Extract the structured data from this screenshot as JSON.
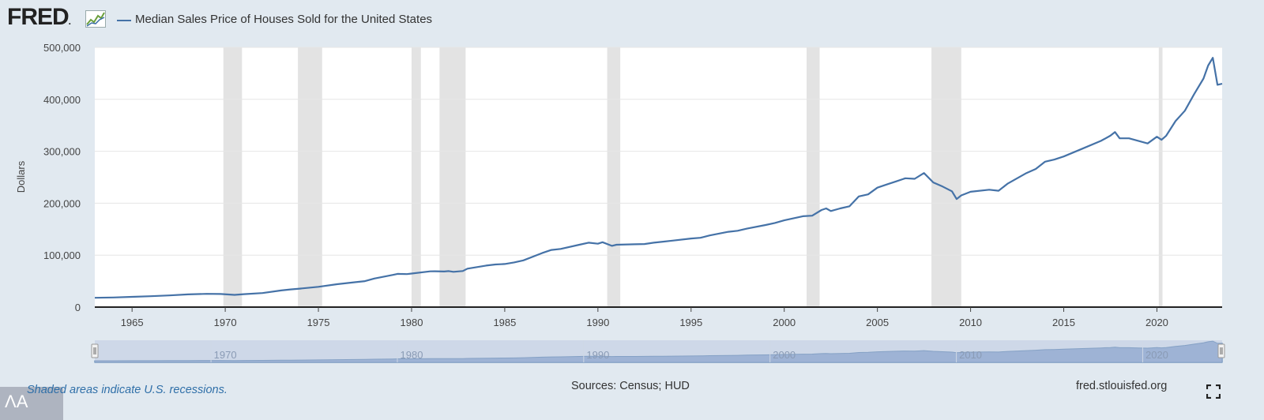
{
  "header": {
    "logo_text": "FRED",
    "logo_dot": ".",
    "series_title": "Median Sales Price of Houses Sold for the United States"
  },
  "footer": {
    "note": "Shaded areas indicate U.S. recessions.",
    "sources": "Sources: Census; HUD",
    "site": "fred.stlouisfed.org",
    "accessibility_glyph": "ΛA"
  },
  "colors": {
    "background": "#e1e9f0",
    "plot_background": "#ffffff",
    "series": "#4572a7",
    "recession": "#e3e3e3",
    "navigator_mask": "#b9c8df",
    "navigator_fill": "#7d99c9"
  },
  "icons": [
    "logo-graph-icon",
    "fullscreen-icon",
    "accessibility-icon"
  ],
  "chart_data": {
    "type": "line",
    "title": "Median Sales Price of Houses Sold for the United States",
    "xlabel": "",
    "ylabel": "Dollars",
    "xlim": [
      1963.0,
      2023.5
    ],
    "ylim": [
      0,
      500000
    ],
    "grid": true,
    "legend": "top-left",
    "x_ticks": [
      1965,
      1970,
      1975,
      1980,
      1985,
      1990,
      1995,
      2000,
      2005,
      2010,
      2015,
      2020
    ],
    "y_ticks": [
      0,
      100000,
      200000,
      300000,
      400000,
      500000
    ],
    "y_tick_labels": [
      "0",
      "100,000",
      "200,000",
      "300,000",
      "400,000",
      "500,000"
    ],
    "navigator_ticks": [
      1970,
      1980,
      1990,
      2000,
      2010,
      2020
    ],
    "recessions": [
      [
        1969.9,
        1970.9
      ],
      [
        1973.9,
        1975.2
      ],
      [
        1980.0,
        1980.5
      ],
      [
        1981.5,
        1982.9
      ],
      [
        1990.5,
        1991.2
      ],
      [
        2001.2,
        2001.9
      ],
      [
        2007.9,
        2009.5
      ],
      [
        2020.1,
        2020.3
      ]
    ],
    "series": [
      {
        "name": "Median Sales Price of Houses Sold for the United States",
        "x": [
          1963.0,
          1964.0,
          1965.0,
          1966.0,
          1967.0,
          1968.0,
          1969.0,
          1969.75,
          1970.5,
          1971.0,
          1972.0,
          1973.0,
          1973.5,
          1974.0,
          1975.0,
          1976.0,
          1977.0,
          1977.5,
          1978.0,
          1979.0,
          1979.25,
          1979.75,
          1980.0,
          1981.0,
          1981.25,
          1981.75,
          1982.0,
          1982.25,
          1982.75,
          1983.0,
          1984.0,
          1984.5,
          1985.0,
          1985.5,
          1986.0,
          1987.0,
          1987.5,
          1988.0,
          1989.0,
          1989.5,
          1990.0,
          1990.25,
          1990.75,
          1991.0,
          1992.0,
          1992.5,
          1993.0,
          1993.5,
          1994.0,
          1995.0,
          1995.5,
          1996.0,
          1997.0,
          1997.5,
          1998.0,
          1999.0,
          1999.5,
          2000.0,
          2001.0,
          2001.5,
          2002.0,
          2002.25,
          2002.5,
          2003.0,
          2003.5,
          2004.0,
          2004.5,
          2005.0,
          2005.5,
          2006.0,
          2006.5,
          2007.0,
          2007.5,
          2008.0,
          2008.5,
          2009.0,
          2009.25,
          2009.5,
          2010.0,
          2011.0,
          2011.5,
          2012.0,
          2013.0,
          2013.5,
          2014.0,
          2014.5,
          2015.0,
          2016.0,
          2017.0,
          2017.5,
          2017.75,
          2018.0,
          2018.5,
          2019.0,
          2019.5,
          2020.0,
          2020.25,
          2020.5,
          2021.0,
          2021.5,
          2022.0,
          2022.5,
          2022.75,
          2023.0,
          2023.25,
          2023.5
        ],
        "values": [
          18000,
          18500,
          19800,
          21000,
          22500,
          24500,
          25600,
          25200,
          23500,
          25000,
          27000,
          32000,
          34000,
          35500,
          39000,
          44000,
          48000,
          50000,
          55000,
          62000,
          64000,
          63500,
          64600,
          68900,
          69000,
          68500,
          69300,
          68000,
          69500,
          74000,
          79900,
          82000,
          83000,
          86000,
          90000,
          104000,
          110000,
          112000,
          120000,
          124000,
          122000,
          125000,
          118000,
          120000,
          121000,
          121500,
          124000,
          126000,
          128000,
          132000,
          133500,
          138000,
          145000,
          147000,
          151000,
          158000,
          162000,
          167000,
          175000,
          176000,
          187000,
          190000,
          185000,
          190000,
          194000,
          213000,
          217000,
          230000,
          236000,
          242000,
          248000,
          247000,
          258000,
          240000,
          232000,
          223000,
          208000,
          215000,
          222000,
          226000,
          224000,
          238000,
          258000,
          266000,
          280000,
          284000,
          290000,
          305000,
          320000,
          330000,
          337000,
          325000,
          325000,
          320000,
          315000,
          328000,
          322000,
          330000,
          358000,
          378000,
          410000,
          440000,
          465000,
          480000,
          428000,
          430000
        ]
      }
    ]
  }
}
